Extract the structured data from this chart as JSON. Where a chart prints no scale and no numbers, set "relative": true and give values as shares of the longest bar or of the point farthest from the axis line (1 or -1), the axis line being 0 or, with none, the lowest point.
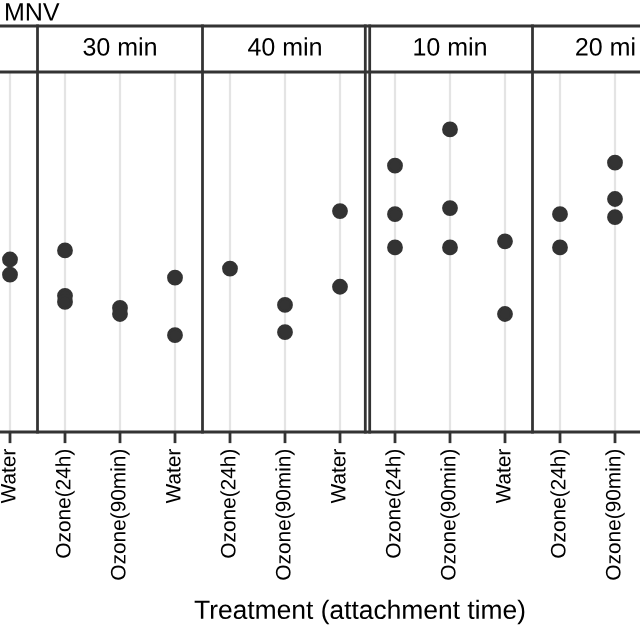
{
  "chart_data": {
    "type": "scatter",
    "relative": true,
    "xlabel": "Treatment (attachment time)",
    "annotations": [
      "MNV",
      "30 min",
      "40 min",
      "10 min",
      "20 mi"
    ],
    "grid": "x",
    "marker": "circle",
    "tick_labels": "x",
    "categories": [
      "Water",
      "Ozone(24h)",
      "Ozone(90min)",
      "Water",
      "Ozone(24h)",
      "Ozone(90min)",
      "Water",
      "Ozone(24h)",
      "Ozone(90min)",
      "Water",
      "Ozone(24h)",
      "Ozone(90min)"
    ],
    "series": [
      {
        "color": "#333333",
        "values": [
          0.57,
          0.6,
          0.41,
          0.51,
          0.54,
          0.42,
          0.73,
          0.88,
          1.0,
          0.63,
          0.72,
          0.89
        ]
      },
      {
        "color": "#333333",
        "values": [
          0.52,
          0.45,
          0.39,
          0.32,
          null,
          0.33,
          0.48,
          0.72,
          0.74,
          0.39,
          0.61,
          0.77
        ]
      },
      {
        "color": "#333333",
        "values": [
          null,
          0.43,
          null,
          null,
          null,
          null,
          null,
          0.61,
          0.61,
          null,
          null,
          0.71
        ]
      }
    ]
  }
}
